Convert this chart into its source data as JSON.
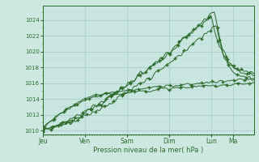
{
  "bg_color": "#cce8e0",
  "plot_bg_color": "#cce8e0",
  "grid_major_color": "#aacccc",
  "grid_minor_color": "#bbdddd",
  "line_color": "#2d6b2d",
  "line_color2": "#3d8b3d",
  "xlabel": "Pression niveau de la mer( hPa )",
  "ylim": [
    1009.5,
    1025.8
  ],
  "yticks": [
    1010,
    1012,
    1014,
    1016,
    1018,
    1020,
    1022,
    1024
  ],
  "day_labels": [
    "Jeu",
    "Ven",
    "Sam",
    "Dim",
    "Lun",
    "Ma"
  ],
  "day_fracs": [
    0.0,
    0.2,
    0.4,
    0.6,
    0.8,
    0.9
  ],
  "num_points": 240
}
